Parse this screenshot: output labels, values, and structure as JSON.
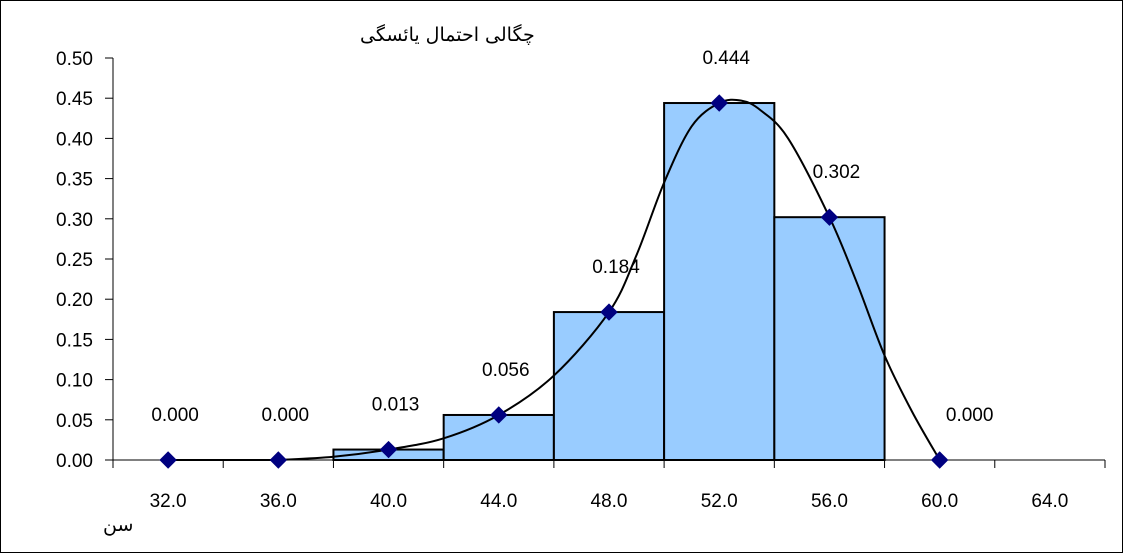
{
  "chart_data": {
    "type": "bar",
    "title": "",
    "ylabel": "چگالی احتمال یائسگی",
    "xlabel": "سن",
    "ylim": [
      0,
      0.5
    ],
    "yticks": [
      "0.00",
      "0.05",
      "0.10",
      "0.15",
      "0.20",
      "0.25",
      "0.30",
      "0.35",
      "0.40",
      "0.45",
      "0.50"
    ],
    "xlim": [
      30,
      66
    ],
    "xticks": [
      "32.0",
      "36.0",
      "40.0",
      "44.0",
      "48.0",
      "52.0",
      "56.0",
      "60.0",
      "64.0"
    ],
    "bars": [
      {
        "x0": 38,
        "x1": 42,
        "value": 0.013
      },
      {
        "x0": 42,
        "x1": 46,
        "value": 0.056
      },
      {
        "x0": 46,
        "x1": 50,
        "value": 0.184
      },
      {
        "x0": 50,
        "x1": 54,
        "value": 0.444
      },
      {
        "x0": 54,
        "x1": 58,
        "value": 0.302
      }
    ],
    "points": [
      {
        "x": 32,
        "y": 0.0,
        "label": "0.000"
      },
      {
        "x": 36,
        "y": 0.0,
        "label": "0.000"
      },
      {
        "x": 40,
        "y": 0.013,
        "label": "0.013"
      },
      {
        "x": 44,
        "y": 0.056,
        "label": "0.056"
      },
      {
        "x": 48,
        "y": 0.184,
        "label": "0.184"
      },
      {
        "x": 52,
        "y": 0.444,
        "label": "0.444"
      },
      {
        "x": 56,
        "y": 0.302,
        "label": "0.302"
      },
      {
        "x": 60,
        "y": 0.0,
        "label": "0.000"
      }
    ],
    "curve": [
      [
        36,
        0.0
      ],
      [
        38,
        0.004
      ],
      [
        40,
        0.013
      ],
      [
        42,
        0.027
      ],
      [
        44,
        0.056
      ],
      [
        46,
        0.105
      ],
      [
        48,
        0.184
      ],
      [
        49,
        0.255
      ],
      [
        50,
        0.345
      ],
      [
        51,
        0.415
      ],
      [
        52,
        0.444
      ],
      [
        52.8,
        0.447
      ],
      [
        53.5,
        0.435
      ],
      [
        54.5,
        0.4
      ],
      [
        56,
        0.302
      ],
      [
        57,
        0.22
      ],
      [
        58,
        0.13
      ],
      [
        59,
        0.06
      ],
      [
        60,
        0.0
      ]
    ],
    "colors": {
      "bar_fill": "#99ccff",
      "bar_stroke": "#000000",
      "marker": "#000080",
      "curve": "#000000"
    },
    "grid": false,
    "legend": "none"
  }
}
